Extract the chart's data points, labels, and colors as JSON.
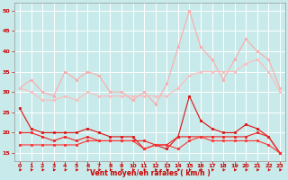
{
  "bg_color": "#c8eaea",
  "grid_color": "#ffffff",
  "xlabel": "Vent moyen/en rafales ( km/h )",
  "xlabel_color": "#cc0000",
  "tick_color": "#cc0000",
  "xlim": [
    -0.5,
    23.5
  ],
  "ylim": [
    13,
    52
  ],
  "yticks": [
    15,
    20,
    25,
    30,
    35,
    40,
    45,
    50
  ],
  "xticks": [
    0,
    1,
    2,
    3,
    4,
    5,
    6,
    7,
    8,
    9,
    10,
    11,
    12,
    13,
    14,
    15,
    16,
    17,
    18,
    19,
    20,
    21,
    22,
    23
  ],
  "series": [
    {
      "color": "#ffaaaa",
      "marker": "o",
      "markersize": 2.0,
      "linewidth": 0.8,
      "y": [
        31,
        33,
        30,
        29,
        35,
        33,
        35,
        34,
        30,
        30,
        28,
        30,
        27,
        32,
        41,
        50,
        41,
        38,
        33,
        38,
        43,
        40,
        38,
        31
      ]
    },
    {
      "color": "#ffbbbb",
      "marker": "o",
      "markersize": 2.0,
      "linewidth": 0.8,
      "y": [
        31,
        30,
        28,
        28,
        29,
        28,
        30,
        29,
        29,
        29,
        29,
        29,
        29,
        29,
        31,
        34,
        35,
        35,
        35,
        35,
        37,
        38,
        35,
        30
      ]
    },
    {
      "color": "#dd1111",
      "marker": "o",
      "markersize": 2.0,
      "linewidth": 0.8,
      "y": [
        26,
        21,
        20,
        20,
        20,
        20,
        21,
        20,
        19,
        19,
        19,
        16,
        17,
        16,
        19,
        29,
        23,
        21,
        20,
        20,
        22,
        21,
        19,
        15
      ]
    },
    {
      "color": "#ee2222",
      "marker": "o",
      "markersize": 2.0,
      "linewidth": 0.8,
      "y": [
        20,
        20,
        19,
        18,
        19,
        18,
        19,
        18,
        18,
        18,
        18,
        18,
        17,
        17,
        19,
        19,
        19,
        19,
        19,
        19,
        19,
        20,
        19,
        15
      ]
    },
    {
      "color": "#ff3333",
      "marker": "o",
      "markersize": 2.0,
      "linewidth": 0.8,
      "y": [
        17,
        17,
        17,
        17,
        17,
        17,
        18,
        18,
        18,
        18,
        18,
        16,
        17,
        17,
        16,
        18,
        19,
        18,
        18,
        18,
        18,
        18,
        17,
        15
      ]
    }
  ]
}
